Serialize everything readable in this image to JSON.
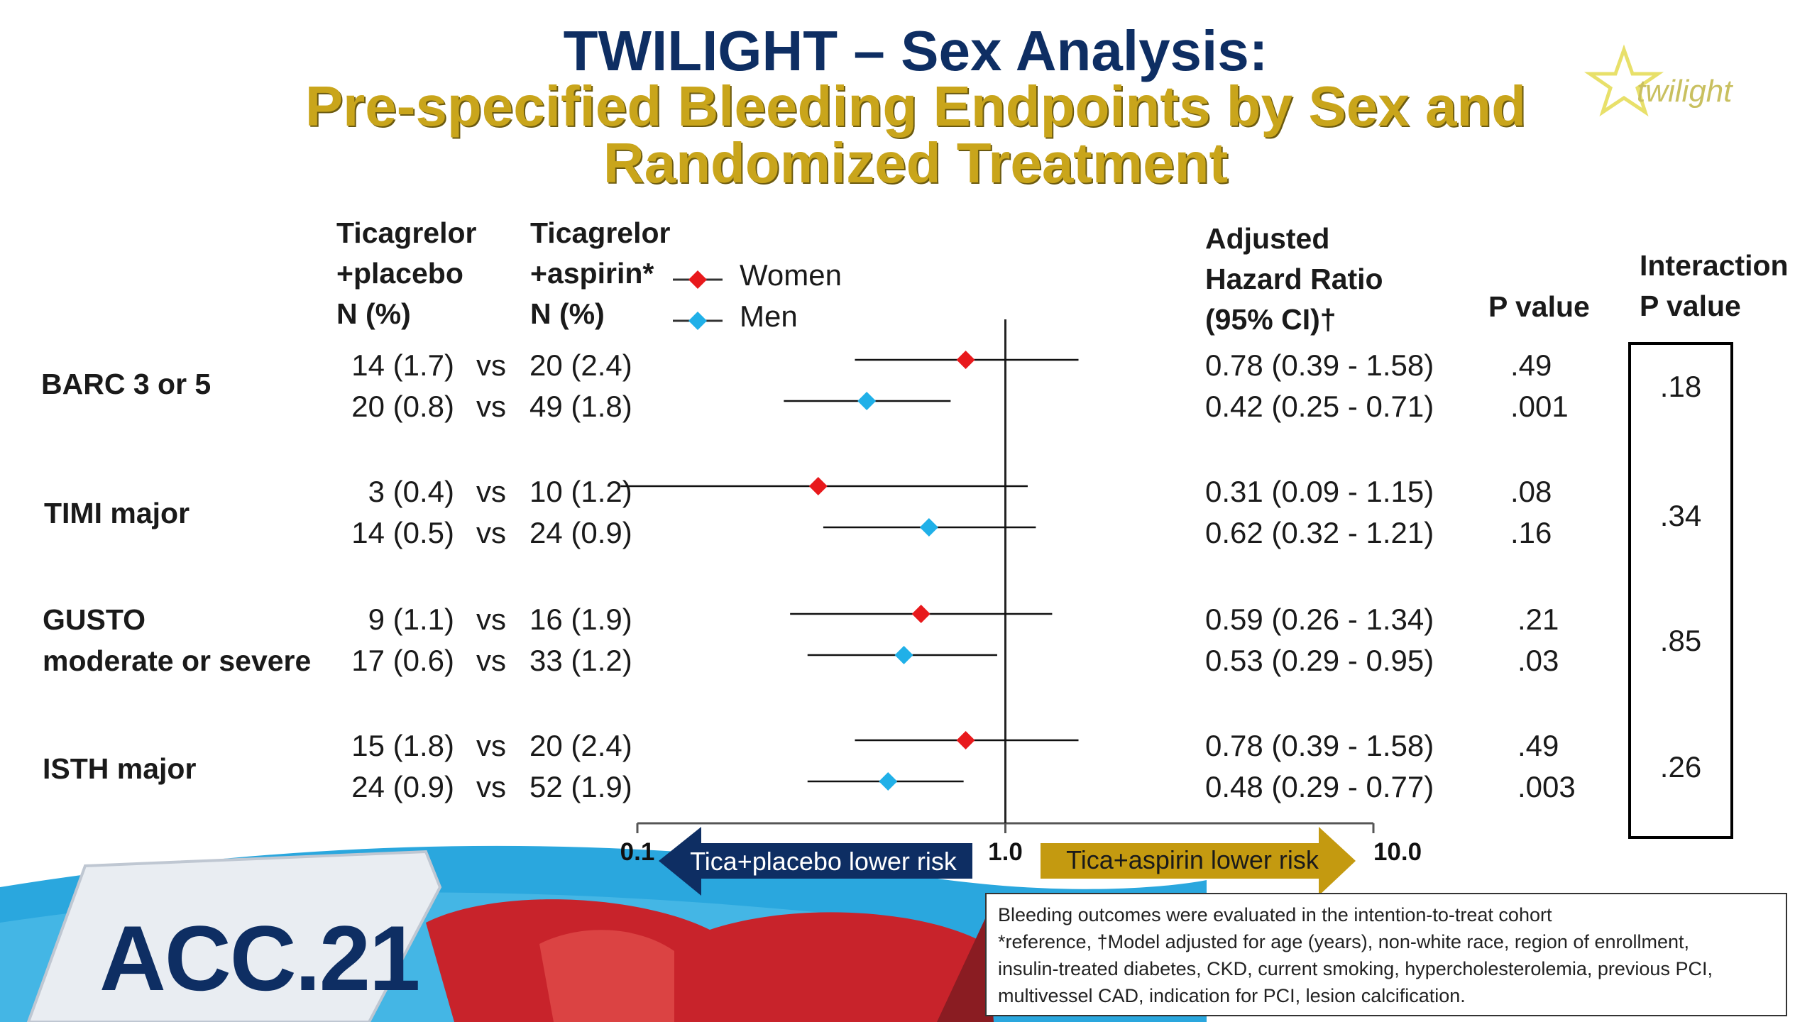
{
  "title": {
    "line1": "TWILIGHT – Sex Analysis:",
    "line2": "Pre-specified Bleeding Endpoints by Sex and",
    "line3": "Randomized Treatment"
  },
  "logo_text": "twilight",
  "branding": {
    "acc_label": "ACC.21"
  },
  "headers": {
    "placebo": [
      "Ticagrelor",
      "+placebo",
      "N (%)"
    ],
    "aspirin": [
      "Ticagrelor",
      "+aspirin*",
      "N (%)"
    ],
    "hr": [
      "Adjusted",
      "Hazard Ratio",
      "(95% CI)†"
    ],
    "p": "P value",
    "interaction": [
      "Interaction",
      "P value"
    ]
  },
  "legend": [
    {
      "name": "Women",
      "color": "#e8191c"
    },
    {
      "name": "Men",
      "color": "#20b0e8"
    }
  ],
  "vs_label": "vs",
  "endpoints": [
    {
      "label": [
        "BARC 3 or 5"
      ],
      "interaction_p": ".18",
      "rows": [
        {
          "sex": "Women",
          "placebo": "14 (1.7)",
          "aspirin": "20 (2.4)",
          "hr_text": "0.78 (0.39 - 1.58)",
          "p": ".49"
        },
        {
          "sex": "Men",
          "placebo": "20 (0.8)",
          "aspirin": "49 (1.8)",
          "hr_text": "0.42 (0.25 - 0.71)",
          "p": ".001"
        }
      ]
    },
    {
      "label": [
        "TIMI major"
      ],
      "interaction_p": ".34",
      "rows": [
        {
          "sex": "Women",
          "placebo": "3 (0.4)",
          "aspirin": "10 (1.2)",
          "hr_text": "0.31 (0.09 - 1.15)",
          "p": ".08"
        },
        {
          "sex": "Men",
          "placebo": "14 (0.5)",
          "aspirin": "24 (0.9)",
          "hr_text": "0.62 (0.32 - 1.21)",
          "p": ".16"
        }
      ]
    },
    {
      "label": [
        "GUSTO",
        "moderate or severe"
      ],
      "interaction_p": ".85",
      "rows": [
        {
          "sex": "Women",
          "placebo": "9 (1.1)",
          "aspirin": "16 (1.9)",
          "hr_text": "0.59 (0.26 - 1.34)",
          "p": ".21"
        },
        {
          "sex": "Men",
          "placebo": "17 (0.6)",
          "aspirin": "33 (1.2)",
          "hr_text": "0.53 (0.29 - 0.95)",
          "p": ".03"
        }
      ]
    },
    {
      "label": [
        "ISTH major"
      ],
      "interaction_p": ".26",
      "rows": [
        {
          "sex": "Women",
          "placebo": "15 (1.8)",
          "aspirin": "20 (2.4)",
          "hr_text": "0.78 (0.39 - 1.58)",
          "p": ".49"
        },
        {
          "sex": "Men",
          "placebo": "24 (0.9)",
          "aspirin": "52 (1.9)",
          "hr_text": "0.48 (0.29 - 0.77)",
          "p": ".003"
        }
      ]
    }
  ],
  "chart_data": {
    "type": "scatter",
    "subtype": "forest",
    "xscale": "log",
    "xlim": [
      0.1,
      10.0
    ],
    "xticks": [
      "0.1",
      "1.0",
      "10.0"
    ],
    "reference_line": 1.0,
    "series": [
      {
        "name": "Women",
        "color": "#e8191c",
        "marker": "diamond",
        "points": [
          {
            "y": "BARC 3 or 5",
            "hr": 0.78,
            "lo": 0.39,
            "hi": 1.58
          },
          {
            "y": "TIMI major",
            "hr": 0.31,
            "lo": 0.09,
            "hi": 1.15
          },
          {
            "y": "GUSTO moderate or severe",
            "hr": 0.59,
            "lo": 0.26,
            "hi": 1.34
          },
          {
            "y": "ISTH major",
            "hr": 0.78,
            "lo": 0.39,
            "hi": 1.58
          }
        ]
      },
      {
        "name": "Men",
        "color": "#20b0e8",
        "marker": "diamond",
        "points": [
          {
            "y": "BARC 3 or 5",
            "hr": 0.42,
            "lo": 0.25,
            "hi": 0.71
          },
          {
            "y": "TIMI major",
            "hr": 0.62,
            "lo": 0.32,
            "hi": 1.21
          },
          {
            "y": "GUSTO moderate or severe",
            "hr": 0.53,
            "lo": 0.29,
            "hi": 0.95
          },
          {
            "y": "ISTH major",
            "hr": 0.48,
            "lo": 0.29,
            "hi": 0.77
          }
        ]
      }
    ],
    "arrows": [
      {
        "text": "Tica+placebo lower risk",
        "direction": "left",
        "color": "#0e2e63"
      },
      {
        "text": "Tica+aspirin lower risk",
        "direction": "right",
        "color": "#c49a10"
      }
    ]
  },
  "footnote": [
    "Bleeding outcomes were evaluated in the intention-to-treat cohort",
    "*reference, †Model adjusted for age (years), non-white race, region of enrollment,",
    "insulin-treated diabetes, CKD, current smoking, hypercholesterolemia, previous PCI,",
    "multivessel CAD, indication for PCI, lesion calcification."
  ]
}
